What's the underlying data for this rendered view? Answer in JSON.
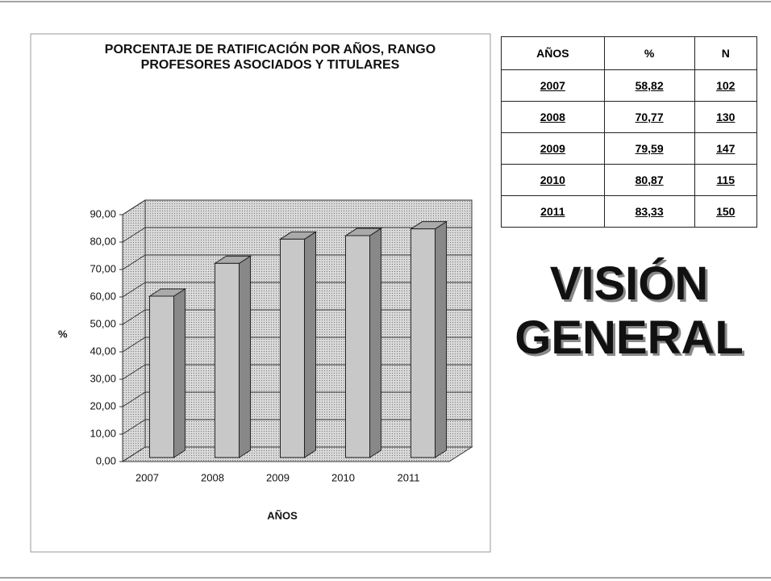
{
  "chart_data": {
    "type": "bar3d",
    "title": "PORCENTAJE DE RATIFICACIÓN POR AÑOS, RANGO PROFESORES ASOCIADOS Y TITULARES",
    "x_label": "AÑOS",
    "y_label": "%",
    "categories": [
      "2007",
      "2008",
      "2009",
      "2010",
      "2011"
    ],
    "values": [
      58.82,
      70.77,
      79.59,
      80.87,
      83.33
    ],
    "color": "#c8c8c8",
    "ylim": [
      0,
      90
    ],
    "yticks": [
      {
        "value": 0,
        "label": "0,00"
      },
      {
        "value": 10,
        "label": "10,00"
      },
      {
        "value": 20,
        "label": "20,00"
      },
      {
        "value": 30,
        "label": "30,00"
      },
      {
        "value": 40,
        "label": "40,00"
      },
      {
        "value": 50,
        "label": "50,00"
      },
      {
        "value": 60,
        "label": "60,00"
      },
      {
        "value": 70,
        "label": "70,00"
      },
      {
        "value": 80,
        "label": "80,00"
      },
      {
        "value": 90,
        "label": "90,00"
      }
    ],
    "grid": true
  },
  "table": {
    "header": [
      "AÑOS",
      "%",
      "N"
    ],
    "rows": [
      [
        "2007",
        "58,82",
        "102"
      ],
      [
        "2008",
        "70,77",
        "130"
      ],
      [
        "2009",
        "79,59",
        "147"
      ],
      [
        "2010",
        "80,87",
        "115"
      ],
      [
        "2011",
        "83,33",
        "150"
      ]
    ]
  },
  "heading": {
    "lines": [
      "VISIÓN",
      "GENERAL"
    ]
  }
}
